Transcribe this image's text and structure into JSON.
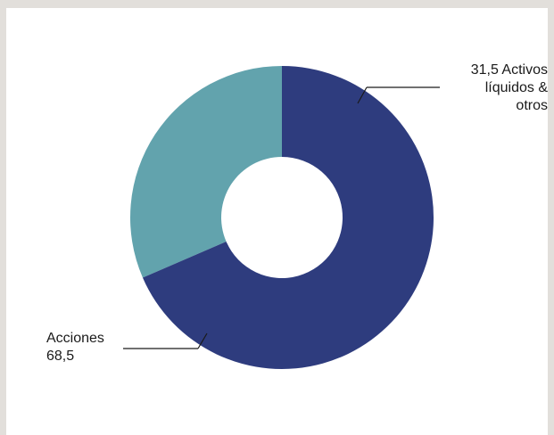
{
  "chart_data": {
    "type": "pie",
    "title": "",
    "style": "donut",
    "slices": [
      {
        "label": "Activos líquidos & otros",
        "value": 31.5,
        "value_text": "31,5",
        "display_text": "31,5  Activos\nlíquidos &\notros",
        "color": "#62a3ad"
      },
      {
        "label": "Acciones",
        "value": 68.5,
        "value_text": "68,5",
        "display_text": "Acciones\n68,5",
        "color": "#2e3c7e"
      }
    ],
    "start_angle_deg": 90,
    "direction": "counterclockwise",
    "legend": "none",
    "label_style": "callout-lines"
  },
  "colors": {
    "frame_background": "#e2dfdb",
    "panel_background": "#ffffff",
    "leader_line": "#1a1a1a"
  }
}
